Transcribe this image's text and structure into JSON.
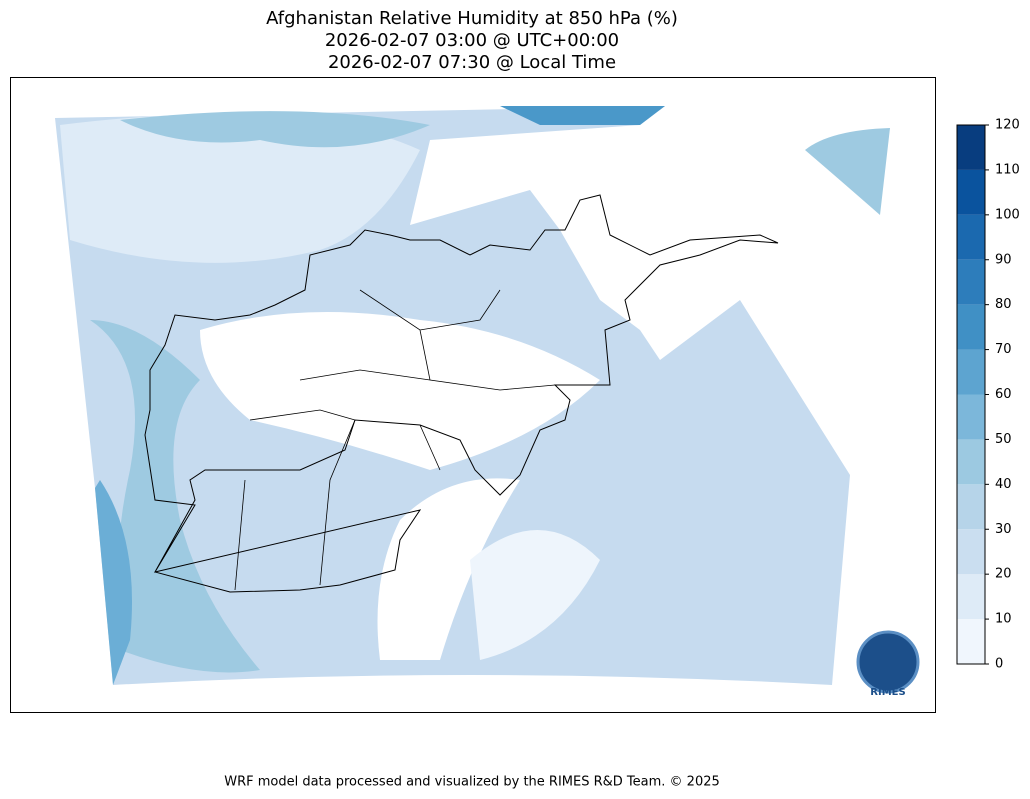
{
  "title": [
    "Afghanistan Relative Humidity at 850 hPa (%)",
    "2026-02-07 03:00 @ UTC+00:00",
    "2026-02-07 07:30 @ Local Time"
  ],
  "colorbar": {
    "lim": [
      0,
      120
    ],
    "ticks": [
      0,
      10,
      20,
      30,
      40,
      50,
      60,
      70,
      80,
      90,
      100,
      110,
      120
    ],
    "colors": [
      "#f0f6fd",
      "#deebf7",
      "#cadef0",
      "#b6d4e9",
      "#9cc9e1",
      "#7cb7da",
      "#5da4d0",
      "#4090c5",
      "#2d7dbb",
      "#1b69af",
      "#0a539e",
      "#083d7f"
    ]
  },
  "footer": "WRF model data processed and visualized by the RIMES R&D Team. © 2025",
  "logo": "RIMES"
}
